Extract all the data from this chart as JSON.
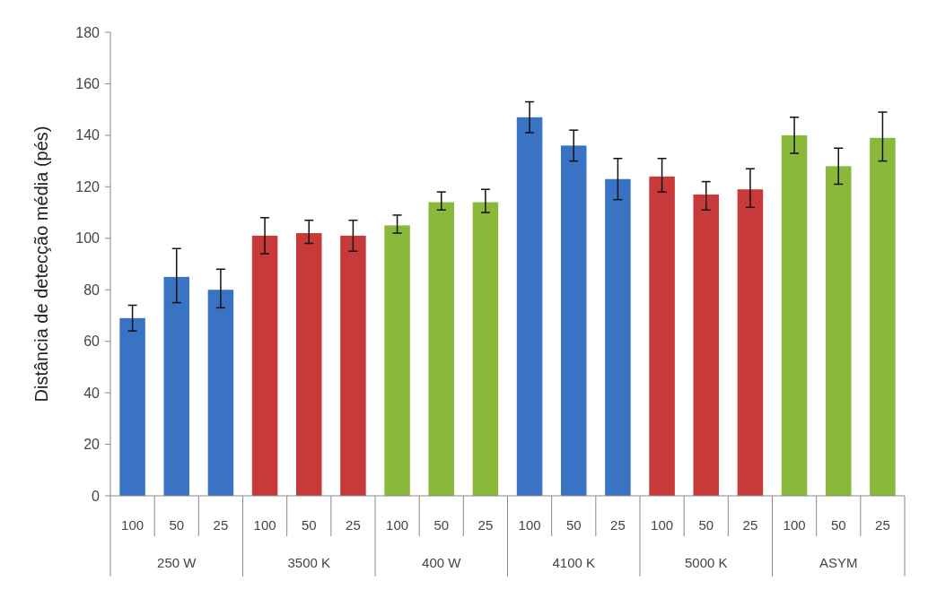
{
  "chart_data": {
    "type": "bar",
    "ylabel": "Distância de detecção média (pés)",
    "categories": [
      "100",
      "50",
      "25",
      "100",
      "50",
      "25",
      "100",
      "50",
      "25",
      "100",
      "50",
      "25",
      "100",
      "50",
      "25",
      "100",
      "50",
      "25"
    ],
    "values": [
      69,
      85,
      80,
      101,
      102,
      101,
      105,
      114,
      114,
      147,
      136,
      123,
      124,
      117,
      119,
      140,
      128,
      139
    ],
    "errors": [
      [
        64,
        74
      ],
      [
        75,
        96
      ],
      [
        73,
        88
      ],
      [
        94,
        108
      ],
      [
        98,
        107
      ],
      [
        95,
        107
      ],
      [
        102,
        109
      ],
      [
        111,
        118
      ],
      [
        110,
        119
      ],
      [
        141,
        153
      ],
      [
        130,
        142
      ],
      [
        115,
        131
      ],
      [
        118,
        131
      ],
      [
        111,
        122
      ],
      [
        112,
        127
      ],
      [
        133,
        147
      ],
      [
        121,
        135
      ],
      [
        130,
        149
      ]
    ],
    "colors": [
      "#3b73c4",
      "#3b73c4",
      "#3b73c4",
      "#c83a3a",
      "#c83a3a",
      "#c83a3a",
      "#8ab83a",
      "#8ab83a",
      "#8ab83a",
      "#3b73c4",
      "#3b73c4",
      "#3b73c4",
      "#c83a3a",
      "#c83a3a",
      "#c83a3a",
      "#8ab83a",
      "#8ab83a",
      "#8ab83a"
    ],
    "annotations": [
      "250 W",
      "3500 K",
      "400 W",
      "4100 K",
      "5000 K",
      "ASYM"
    ],
    "ylim": [
      0,
      180
    ],
    "yticks": [
      0,
      20,
      40,
      60,
      80,
      100,
      120,
      140,
      160,
      180
    ],
    "grid": false
  }
}
